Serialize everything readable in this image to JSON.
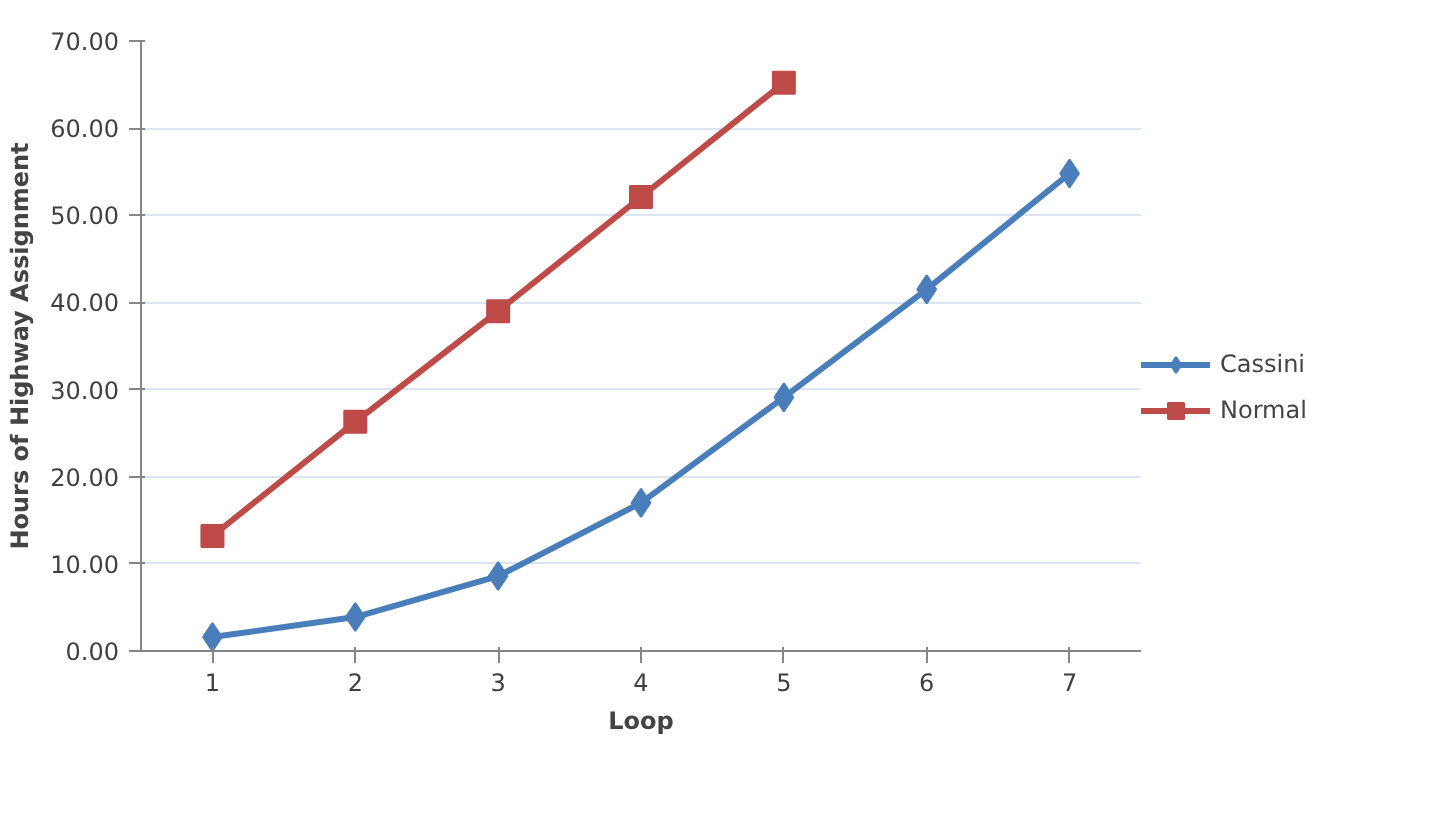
{
  "chart_data": {
    "type": "line",
    "xlabel": "Loop",
    "ylabel": "Hours of Highway Assignment",
    "categories": [
      "1",
      "2",
      "3",
      "4",
      "5",
      "6",
      "7"
    ],
    "series": [
      {
        "name": "Cassini",
        "color": "#4a7ebb",
        "marker": "diamond",
        "values": [
          1.6,
          3.9,
          8.6,
          17.0,
          29.1,
          41.5,
          54.8
        ]
      },
      {
        "name": "Normal",
        "color": "#be4b48",
        "marker": "square",
        "values": [
          13.2,
          26.3,
          39.0,
          52.1,
          65.2,
          null,
          null
        ]
      }
    ],
    "ylim": [
      0,
      70
    ],
    "yticks": [
      {
        "value": 0,
        "label": "0.00"
      },
      {
        "value": 10,
        "label": "10.00"
      },
      {
        "value": 20,
        "label": "20.00"
      },
      {
        "value": 30,
        "label": "30.00"
      },
      {
        "value": 40,
        "label": "40.00"
      },
      {
        "value": 50,
        "label": "50.00"
      },
      {
        "value": 60,
        "label": "60.00"
      },
      {
        "value": 70,
        "label": "70.00"
      }
    ],
    "grid": "y",
    "legend": "right",
    "line_style": "solid"
  }
}
